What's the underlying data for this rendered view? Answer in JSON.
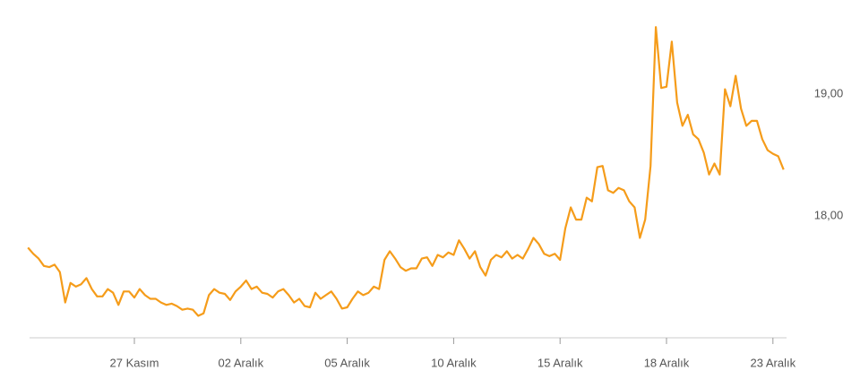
{
  "chart_data": {
    "type": "line",
    "categories": [
      null,
      null,
      null,
      null,
      null,
      null,
      null,
      null,
      null,
      null,
      null,
      null,
      null,
      null,
      null,
      null,
      null,
      null,
      null,
      null,
      "27 Kasım",
      null,
      null,
      null,
      null,
      null,
      null,
      null,
      null,
      null,
      null,
      null,
      null,
      null,
      null,
      null,
      null,
      null,
      null,
      null,
      "02 Aralık",
      null,
      null,
      null,
      null,
      null,
      null,
      null,
      null,
      null,
      null,
      null,
      null,
      null,
      null,
      null,
      null,
      null,
      null,
      null,
      "05 Aralık",
      null,
      null,
      null,
      null,
      null,
      null,
      null,
      null,
      null,
      null,
      null,
      null,
      null,
      null,
      null,
      null,
      null,
      null,
      null,
      "10 Aralık",
      null,
      null,
      null,
      null,
      null,
      null,
      null,
      null,
      null,
      null,
      null,
      null,
      null,
      null,
      null,
      null,
      null,
      null,
      null,
      "15 Aralık",
      null,
      null,
      null,
      null,
      null,
      null,
      null,
      null,
      null,
      null,
      null,
      null,
      null,
      null,
      null,
      null,
      null,
      null,
      null,
      "18 Aralık",
      null,
      null,
      null,
      null,
      null,
      null,
      null,
      null,
      null,
      null,
      null,
      null,
      null,
      null,
      null,
      null,
      null,
      null,
      null,
      "23 Aralık",
      null,
      null
    ],
    "values": [
      17.74,
      17.69,
      17.65,
      17.59,
      17.58,
      17.6,
      17.54,
      17.29,
      17.45,
      17.42,
      17.44,
      17.49,
      17.4,
      17.34,
      17.34,
      17.4,
      17.37,
      17.27,
      17.38,
      17.38,
      17.33,
      17.4,
      17.35,
      17.32,
      17.32,
      17.29,
      17.27,
      17.28,
      17.26,
      17.23,
      17.24,
      17.23,
      17.18,
      17.2,
      17.35,
      17.4,
      17.37,
      17.36,
      17.31,
      17.38,
      17.42,
      17.47,
      17.4,
      17.42,
      17.37,
      17.36,
      17.33,
      17.38,
      17.4,
      17.35,
      17.29,
      17.32,
      17.26,
      17.25,
      17.37,
      17.32,
      17.35,
      17.38,
      17.32,
      17.24,
      17.25,
      17.32,
      17.38,
      17.35,
      17.37,
      17.42,
      17.4,
      17.64,
      17.71,
      17.65,
      17.58,
      17.55,
      17.57,
      17.57,
      17.65,
      17.66,
      17.59,
      17.68,
      17.66,
      17.7,
      17.68,
      17.8,
      17.73,
      17.65,
      17.71,
      17.58,
      17.51,
      17.64,
      17.68,
      17.66,
      17.71,
      17.65,
      17.68,
      17.65,
      17.73,
      17.82,
      17.77,
      17.69,
      17.67,
      17.69,
      17.64,
      17.9,
      18.07,
      17.97,
      17.97,
      18.15,
      18.12,
      18.4,
      18.41,
      18.21,
      18.19,
      18.23,
      18.21,
      18.12,
      18.07,
      17.82,
      17.97,
      18.41,
      19.55,
      19.05,
      19.06,
      19.43,
      18.93,
      18.74,
      18.83,
      18.67,
      18.63,
      18.52,
      18.34,
      18.43,
      18.34,
      19.04,
      18.9,
      19.15,
      18.88,
      18.74,
      18.78,
      18.78,
      18.63,
      18.54,
      18.51,
      18.49,
      18.38
    ],
    "color": "#f59c1a",
    "ylim": [
      17,
      19.7
    ],
    "yticks": [
      {
        "value": 18,
        "label": "18,00"
      },
      {
        "value": 19,
        "label": "19,00"
      }
    ],
    "grid": false
  }
}
